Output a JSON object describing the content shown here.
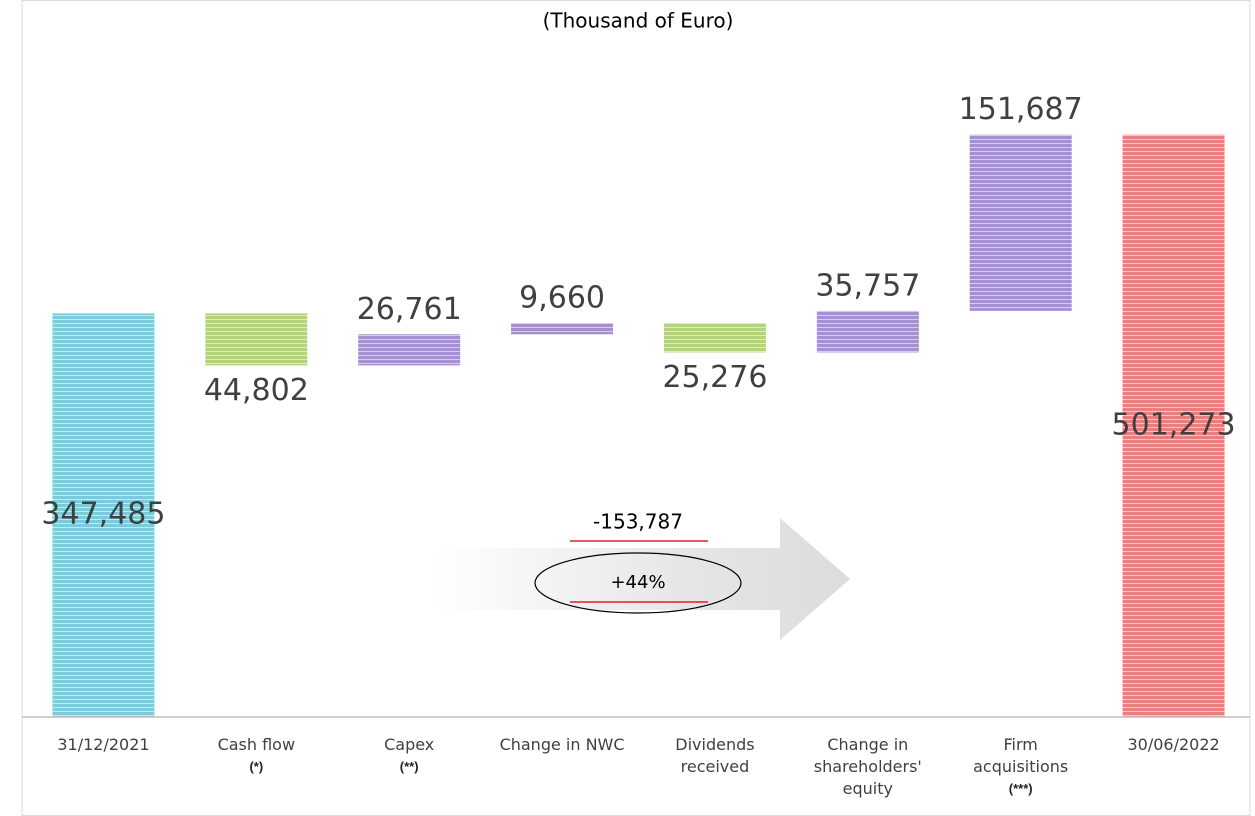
{
  "chart_data": {
    "type": "waterfall",
    "title": "(Thousand of Euro)",
    "categories": [
      [
        "31/12/2021"
      ],
      [
        "Cash flow"
      ],
      [
        "Capex"
      ],
      [
        "Change in NWC"
      ],
      [
        "Dividends",
        "received"
      ],
      [
        "Change in",
        "shareholders'",
        "equity"
      ],
      [
        "Firm",
        "acquisitions"
      ],
      [
        "30/06/2022"
      ]
    ],
    "category_notes": [
      null,
      "(*)",
      "(**)",
      null,
      null,
      null,
      "(***)",
      null
    ],
    "values": [
      347485,
      -44802,
      26761,
      9660,
      -25276,
      35757,
      151687,
      501273
    ],
    "value_labels": [
      "347,485",
      "44,802",
      "26,761",
      "9,660",
      "25,276",
      "35,757",
      "151,687",
      "501,273"
    ],
    "colors": [
      "#7ccbdc",
      "#b3d37a",
      "#a690d0",
      "#a690d0",
      "#b3d37a",
      "#a690d0",
      "#a690d0",
      "#e97f7d"
    ],
    "ylim": [
      0,
      600000
    ],
    "annotations": {
      "difference": "-153,787",
      "change": "+44%"
    }
  }
}
